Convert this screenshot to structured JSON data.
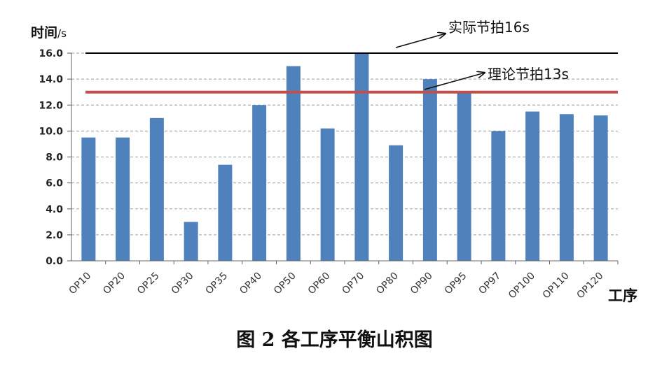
{
  "chart_data": {
    "type": "bar",
    "title": "",
    "xlabel": "工序",
    "ylabel": "时间",
    "ylabel_unit": "/s",
    "ylim": [
      0,
      16
    ],
    "yticks": [
      "0.0",
      "2.0",
      "4.0",
      "6.0",
      "8.0",
      "10.0",
      "12.0",
      "14.0",
      "16.0"
    ],
    "grid": true,
    "categories": [
      "OP10",
      "OP20",
      "OP25",
      "OP30",
      "OP35",
      "OP40",
      "OP50",
      "OP60",
      "OP70",
      "OP80",
      "OP90",
      "OP95",
      "OP97",
      "OP100",
      "OP110",
      "OP120"
    ],
    "values": [
      9.5,
      9.5,
      11.0,
      3.0,
      7.4,
      12.0,
      15.0,
      10.2,
      16.0,
      8.9,
      14.0,
      13.0,
      10.0,
      11.5,
      11.3,
      11.2
    ],
    "bar_color": "#4f81bd",
    "reference_lines": [
      {
        "label": "实际节拍16s",
        "value": 16,
        "color": "#000000"
      },
      {
        "label": "理论节拍13s",
        "value": 13,
        "color": "#c0504d"
      }
    ]
  },
  "caption": "图 2  各工序平衡山积图"
}
